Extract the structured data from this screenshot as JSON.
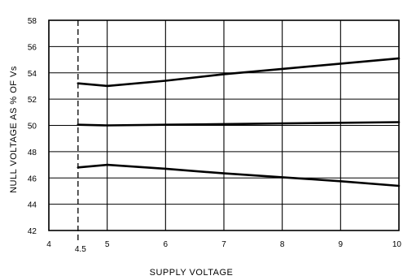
{
  "chart_data": {
    "type": "line",
    "title": "",
    "xlabel": "SUPPLY VOLTAGE",
    "ylabel": "NULL VOLTAGE AS % OF Vs",
    "xlim": [
      4,
      10
    ],
    "ylim": [
      42,
      58
    ],
    "grid": true,
    "x_ticks": [
      "4",
      "5",
      "6",
      "7",
      "8",
      "9",
      "10"
    ],
    "y_ticks": [
      "42",
      "44",
      "46",
      "48",
      "50",
      "52",
      "54",
      "56",
      "58"
    ],
    "marker_line": {
      "x": 4.5,
      "label": "4.5",
      "style": "dashed"
    },
    "series": [
      {
        "x": [
          4.5,
          5,
          6,
          7,
          8,
          9,
          10
        ],
        "values": [
          53.2,
          53.0,
          53.4,
          53.9,
          54.3,
          54.7,
          55.1
        ]
      },
      {
        "x": [
          4.5,
          5,
          6,
          7,
          8,
          9,
          10
        ],
        "values": [
          50.05,
          50.0,
          50.05,
          50.1,
          50.15,
          50.2,
          50.25
        ]
      },
      {
        "x": [
          4.5,
          5,
          6,
          7,
          8,
          9,
          10
        ],
        "values": [
          46.8,
          47.0,
          46.7,
          46.35,
          46.05,
          45.75,
          45.4
        ]
      }
    ]
  }
}
